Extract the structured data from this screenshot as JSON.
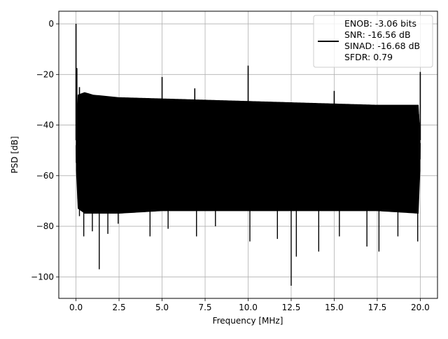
{
  "chart_data": {
    "type": "line",
    "title": "",
    "xlabel": "Frequency [MHz]",
    "ylabel": "PSD [dB]",
    "xlim": [
      -1.0,
      21.0
    ],
    "ylim": [
      -108.5,
      5.0
    ],
    "xticks": [
      0.0,
      2.5,
      5.0,
      7.5,
      10.0,
      12.5,
      15.0,
      17.5,
      20.0
    ],
    "xtick_labels": [
      "0.0",
      "2.5",
      "5.0",
      "7.5",
      "10.0",
      "12.5",
      "15.0",
      "17.5",
      "20.0"
    ],
    "yticks": [
      0,
      -20,
      -40,
      -60,
      -80,
      -100
    ],
    "ytick_labels": [
      "0",
      "−20",
      "−40",
      "−60",
      "−80",
      "−100"
    ],
    "grid": true,
    "legend_position": "top-right",
    "legend_lines": [
      "ENOB: -3.06 bits",
      "SNR: -16.56 dB",
      "SINAD: -16.68 dB",
      "SFDR: 0.79"
    ],
    "line_color": "#000000",
    "series": [
      {
        "noise_floor_envelope": {
          "x": [
            0.0,
            0.1,
            0.5,
            1.0,
            2.5,
            5.0,
            7.5,
            10.0,
            12.5,
            15.0,
            17.5,
            19.9,
            20.0
          ],
          "upper": [
            -46,
            -30,
            -29,
            -30,
            -31,
            -31.5,
            -32,
            -32.5,
            -33,
            -33.5,
            -34,
            -34,
            -46
          ],
          "lower": [
            -55,
            -70,
            -72,
            -72,
            -72,
            -71,
            -71,
            -71,
            -71,
            -71,
            -71,
            -72,
            -55
          ]
        },
        "spikes": {
          "x": [
            0.0,
            0.05,
            0.2,
            5.0,
            6.9,
            10.0,
            15.0,
            20.0
          ],
          "y": [
            0,
            -17.5,
            -25,
            -21,
            -25.5,
            -16.5,
            -26.5,
            -19
          ]
        },
        "dips": {
          "x": [
            0.2,
            0.45,
            0.95,
            1.35,
            1.85,
            2.45,
            4.3,
            5.35,
            7.0,
            8.1,
            10.1,
            11.7,
            12.5,
            12.8,
            14.1,
            15.3,
            16.9,
            17.6,
            18.7,
            19.85
          ],
          "y": [
            -76,
            -84,
            -82,
            -97,
            -83,
            -79,
            -84,
            -81,
            -84,
            -80,
            -86,
            -85,
            -103.5,
            -92,
            -90,
            -84,
            -88,
            -90,
            -84,
            -86
          ]
        }
      }
    ]
  }
}
